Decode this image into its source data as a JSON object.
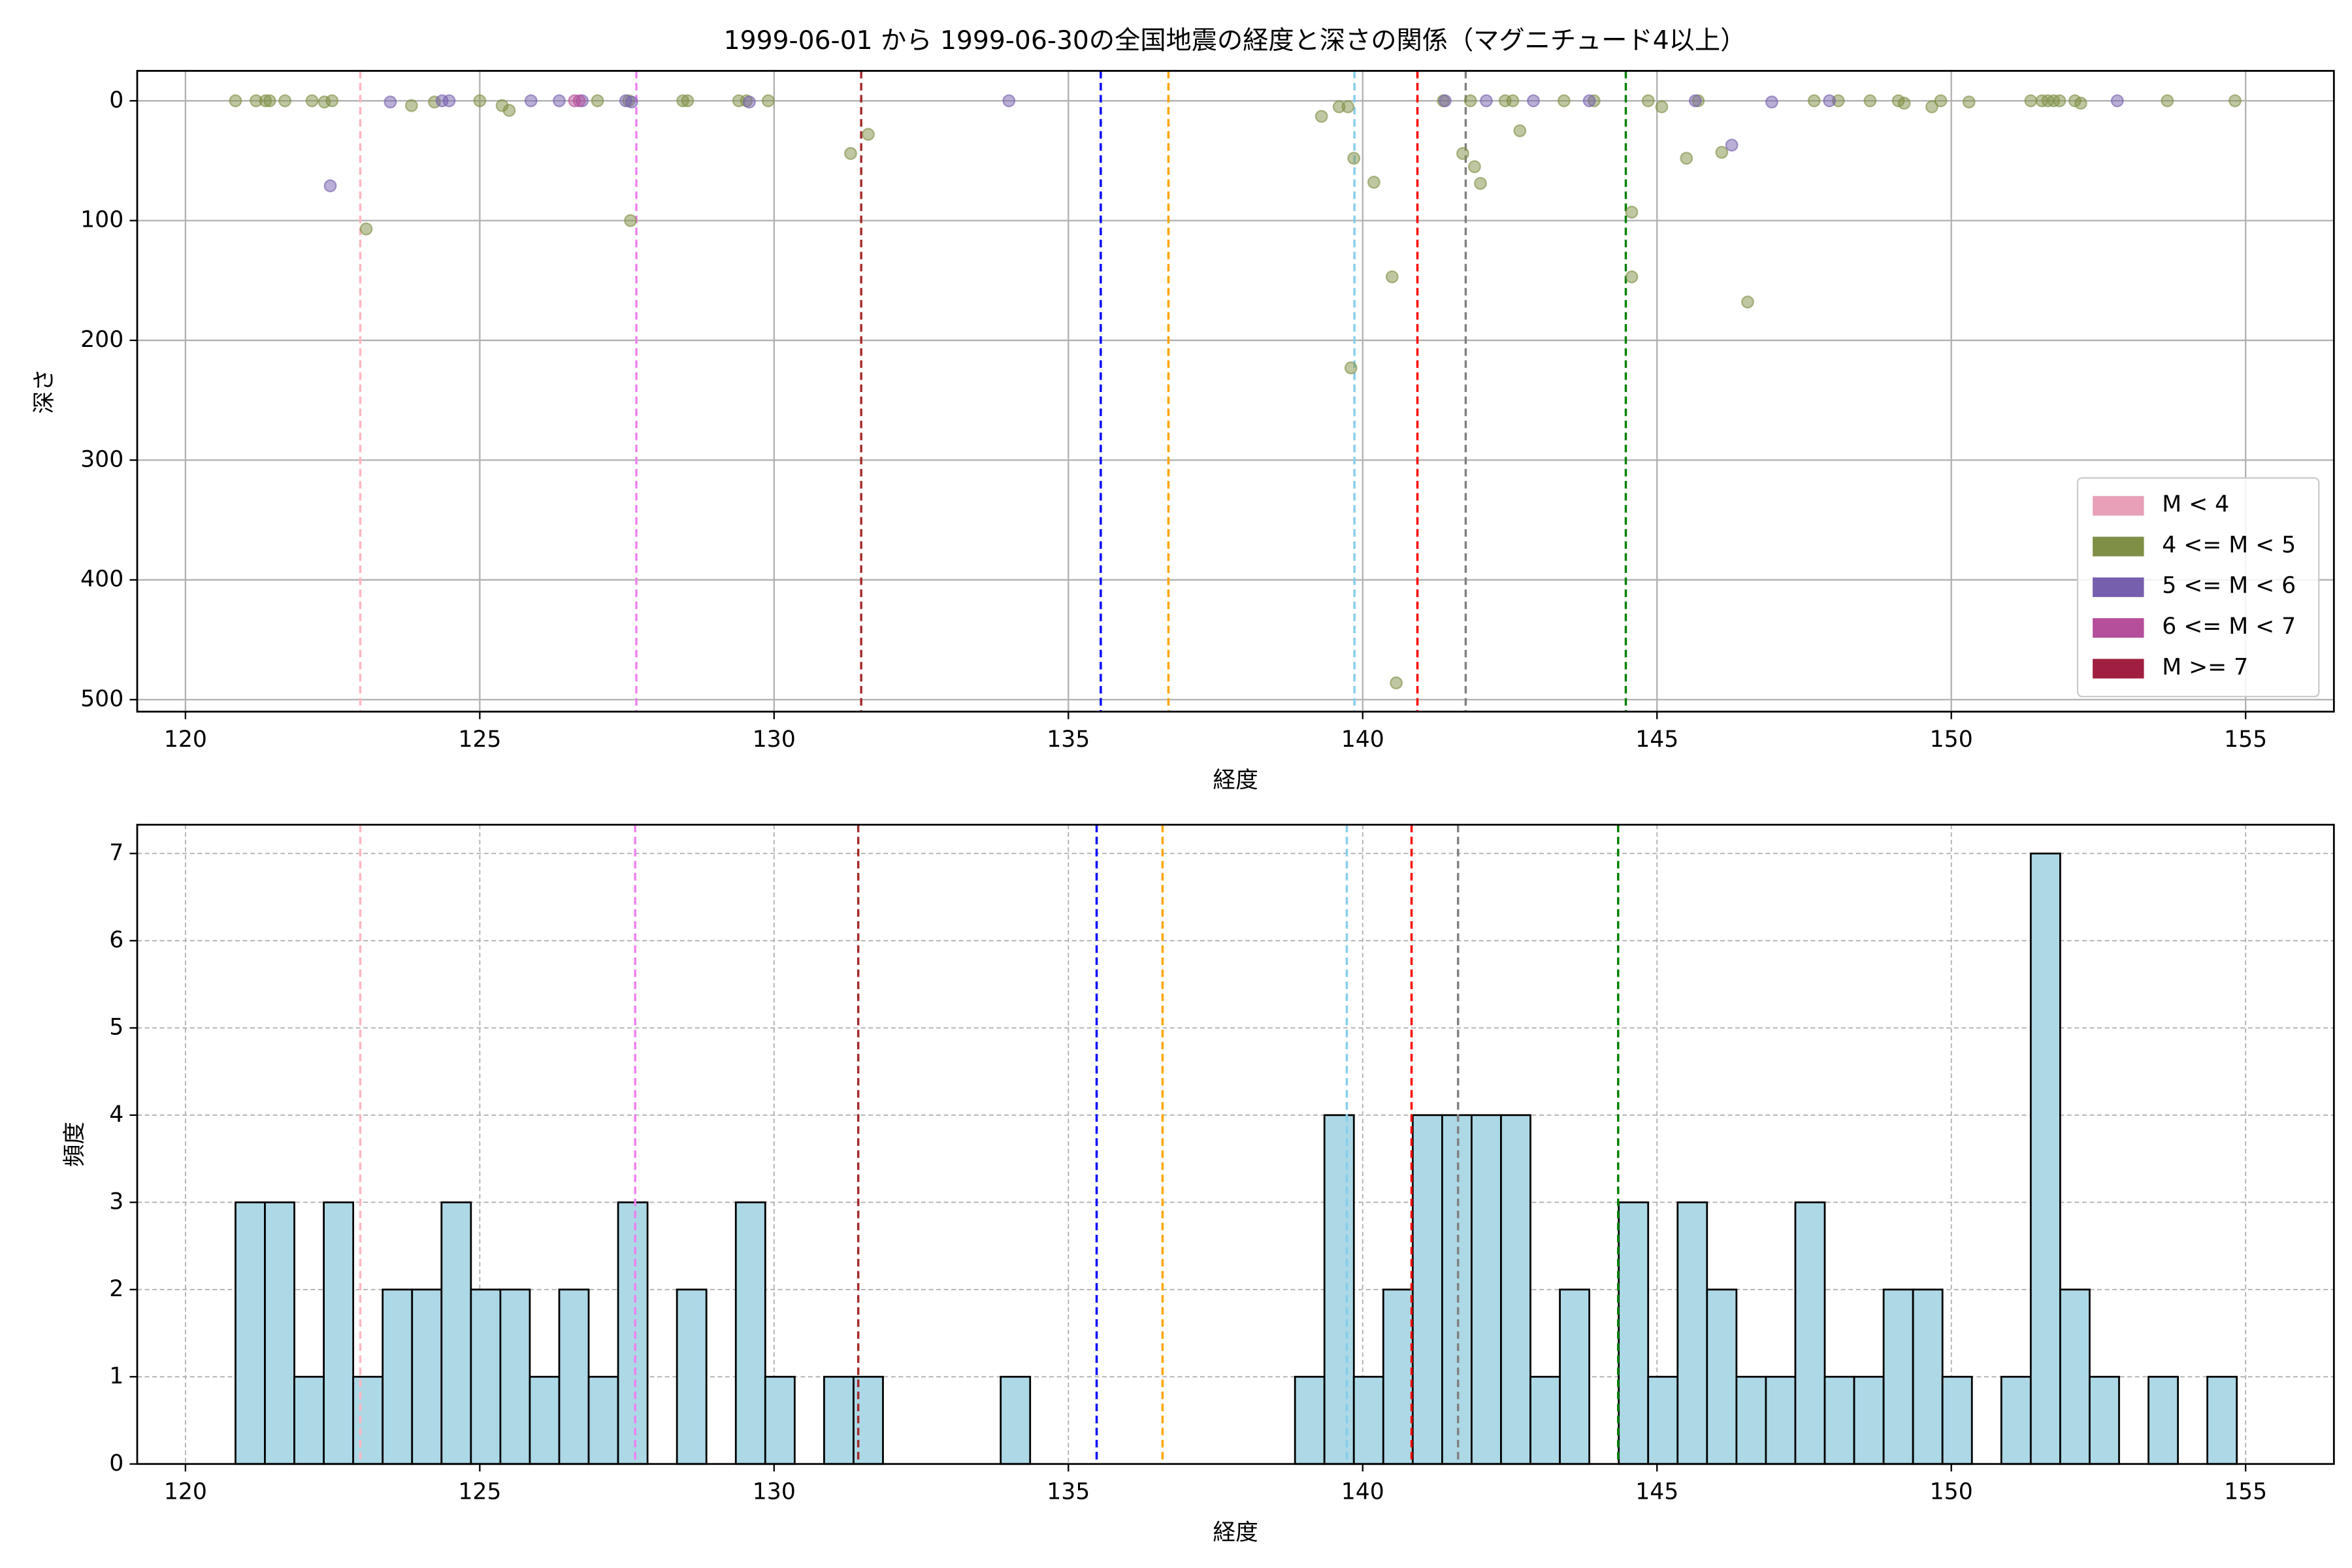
{
  "chart_data": [
    {
      "type": "scatter",
      "title": "1999-06-01 から 1999-06-30の全国地震の経度と深さの関係（マグニチュード4以上）",
      "xlabel": "経度",
      "ylabel": "深さ",
      "xlim": [
        119.18,
        156.5
      ],
      "ylim": [
        510,
        -25
      ],
      "xticks": [
        120,
        125,
        130,
        135,
        140,
        145,
        150,
        155
      ],
      "yticks": [
        0,
        100,
        200,
        300,
        400,
        500
      ],
      "grid": true,
      "legend": "lower right",
      "series": [
        {
          "name": "M < 4",
          "color": "#e7a0b8",
          "x": [],
          "values": []
        },
        {
          "name": "4 <= M < 5",
          "color": "#7f8f46",
          "x": [
            120.85,
            121.2,
            121.36,
            121.43,
            121.69,
            122.15,
            122.36,
            122.49,
            123.07,
            123.84,
            124.23,
            125.0,
            125.38,
            125.5,
            127.0,
            127.53,
            127.56,
            128.45,
            128.53,
            129.4,
            129.53,
            129.9,
            131.3,
            131.6,
            139.3,
            139.6,
            139.75,
            139.8,
            139.85,
            140.19,
            140.5,
            140.57,
            141.37,
            141.7,
            141.83,
            141.9,
            142.0,
            142.42,
            142.55,
            142.67,
            143.42,
            143.93,
            144.57,
            144.57,
            144.85,
            145.08,
            145.5,
            145.7,
            146.1,
            146.54,
            147.67,
            148.08,
            148.62,
            149.1,
            149.2,
            149.67,
            149.82,
            150.3,
            151.35,
            151.54,
            151.64,
            151.74,
            151.84,
            152.1,
            152.2,
            153.67,
            154.82
          ],
          "values": [
            0,
            0,
            0,
            0,
            0,
            0,
            1,
            0,
            107,
            4,
            1,
            0,
            4,
            8,
            0,
            0,
            100,
            0,
            0,
            0,
            0,
            0,
            44,
            28,
            13,
            5,
            5,
            223,
            48,
            68,
            147,
            486,
            0,
            44,
            0,
            55,
            69,
            0,
            0,
            25,
            0,
            0,
            93,
            147,
            0,
            5,
            48,
            0,
            43,
            168,
            0,
            0,
            0,
            0,
            2,
            5,
            0,
            1,
            0,
            0,
            0,
            0,
            0,
            0,
            2,
            0,
            0
          ]
        },
        {
          "name": "5 <= M < 6",
          "color": "#765fad",
          "x": [
            122.46,
            123.48,
            124.36,
            124.48,
            125.87,
            126.35,
            126.74,
            127.48,
            127.58,
            129.58,
            133.99,
            141.4,
            142.1,
            142.9,
            143.85,
            145.65,
            146.27,
            146.95,
            147.93,
            152.82
          ],
          "values": [
            71,
            1,
            0,
            0,
            0,
            0,
            0,
            0,
            1,
            1,
            0,
            0,
            0,
            0,
            0,
            0,
            37,
            1,
            0,
            0
          ]
        },
        {
          "name": "6 <= M < 7",
          "color": "#b54f9b",
          "x": [
            126.61,
            126.69
          ],
          "values": [
            0,
            0
          ]
        },
        {
          "name": "M >= 7",
          "color": "#a01f40",
          "x": [],
          "values": []
        }
      ],
      "vlines": [
        {
          "x": 122.97,
          "color": "#ffb6c1"
        },
        {
          "x": 127.66,
          "color": "#ee82ee"
        },
        {
          "x": 131.48,
          "color": "#a52a2a"
        },
        {
          "x": 135.55,
          "color": "#0000ff"
        },
        {
          "x": 136.7,
          "color": "#ffa500"
        },
        {
          "x": 139.86,
          "color": "#87ceeb"
        },
        {
          "x": 140.93,
          "color": "#ff0000"
        },
        {
          "x": 141.75,
          "color": "#808080"
        },
        {
          "x": 144.47,
          "color": "#008000"
        }
      ]
    },
    {
      "type": "histogram",
      "xlabel": "経度",
      "ylabel": "頻度",
      "color": "#add8e6",
      "edgecolor": "#000000",
      "xlim": [
        119.18,
        156.5
      ],
      "ylim": [
        0,
        7.33
      ],
      "xticks": [
        120,
        125,
        130,
        135,
        140,
        145,
        150,
        155
      ],
      "yticks": [
        0,
        1,
        2,
        3,
        4,
        5,
        6,
        7
      ],
      "grid": true,
      "bins": [
        120.85,
        121.35,
        121.85,
        122.35,
        122.85,
        123.35,
        123.85,
        124.35,
        124.85,
        125.35,
        125.85,
        126.35,
        126.85,
        127.35,
        127.85,
        128.35,
        128.85,
        129.35,
        129.85,
        130.35,
        130.85,
        131.35,
        131.85,
        132.35,
        132.85,
        133.35,
        133.85,
        134.35,
        134.85,
        135.35,
        135.85,
        136.35,
        136.85,
        137.35,
        137.85,
        138.35,
        138.85,
        139.35,
        139.85,
        140.35,
        140.85,
        141.35,
        141.85,
        142.35,
        142.85,
        143.35,
        143.85,
        144.35,
        144.85,
        145.35,
        145.85,
        146.35,
        146.85,
        147.35,
        147.85,
        148.35,
        148.85,
        149.35,
        149.85,
        150.35,
        150.85,
        151.35,
        151.85,
        152.35,
        152.85,
        153.35,
        153.85,
        154.35,
        154.85
      ],
      "values": [
        3,
        3,
        1,
        3,
        1,
        2,
        2,
        3,
        2,
        2,
        1,
        2,
        1,
        3,
        0,
        2,
        0,
        3,
        1,
        0,
        1,
        1,
        0,
        0,
        0,
        0,
        1,
        0,
        0,
        0,
        0,
        0,
        0,
        0,
        0,
        0,
        1,
        4,
        1,
        2,
        4,
        4,
        4,
        4,
        1,
        2,
        0,
        3,
        1,
        3,
        2,
        1,
        1,
        3,
        1,
        1,
        2,
        2,
        1,
        0,
        1,
        7,
        2,
        1,
        0,
        1,
        0,
        1
      ],
      "vlines": [
        {
          "x": 122.97,
          "color": "#ffb6c1"
        },
        {
          "x": 127.64,
          "color": "#ee82ee"
        },
        {
          "x": 131.43,
          "color": "#a52a2a"
        },
        {
          "x": 135.48,
          "color": "#0000ff"
        },
        {
          "x": 136.6,
          "color": "#ffa500"
        },
        {
          "x": 139.73,
          "color": "#87ceeb"
        },
        {
          "x": 140.83,
          "color": "#ff0000"
        },
        {
          "x": 141.62,
          "color": "#808080"
        },
        {
          "x": 144.34,
          "color": "#008000"
        }
      ]
    }
  ]
}
